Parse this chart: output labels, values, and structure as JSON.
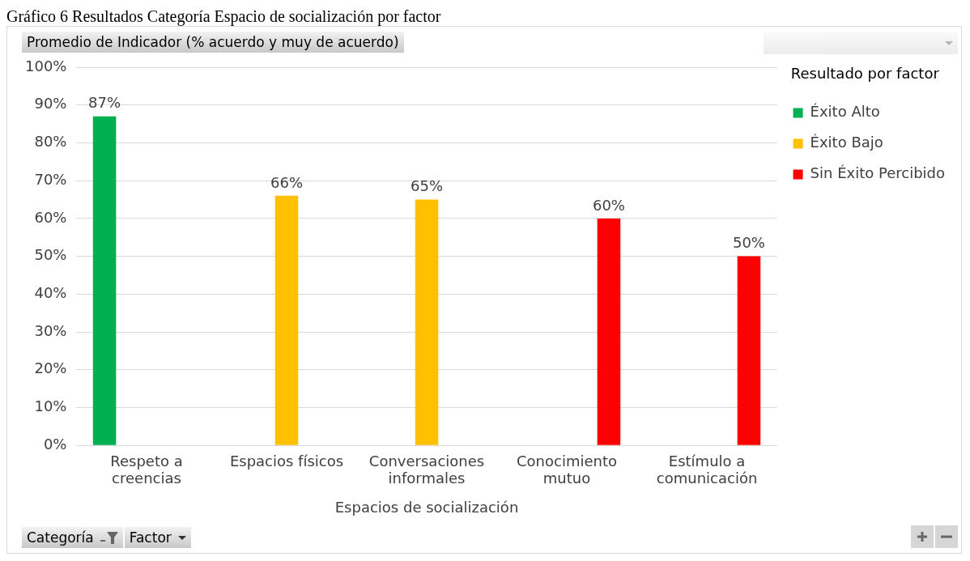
{
  "chart_data": {
    "type": "bar",
    "title": "Gráfico 6 Resultados Categoría Espacio de socialización por factor",
    "ylabel": "Promedio de Indicador (% acuerdo y muy de acuerdo)",
    "xlabel": "Espacios de socialización",
    "legend_title": "Resultado por factor",
    "categories": [
      "Respeto a creencias",
      "Espacios físicos",
      "Conversaciones informales",
      "Conocimiento mutuo",
      "Estímulo a comunicación"
    ],
    "series": [
      {
        "name": "Éxito Alto",
        "color": "#00b050",
        "values": [
          87,
          null,
          null,
          null,
          null
        ],
        "value_labels": [
          "87%",
          null,
          null,
          null,
          null
        ]
      },
      {
        "name": "Éxito Bajo",
        "color": "#ffc000",
        "values": [
          null,
          66,
          65,
          null,
          null
        ],
        "value_labels": [
          null,
          "66%",
          "65%",
          null,
          null
        ]
      },
      {
        "name": "Sin Éxito Percibido",
        "color": "#ff0000",
        "values": [
          null,
          null,
          null,
          60,
          50
        ],
        "value_labels": [
          null,
          null,
          null,
          "60%",
          "50%"
        ]
      }
    ],
    "ylim": [
      0,
      100
    ],
    "yticks": [
      {
        "value": 0,
        "label": "0%"
      },
      {
        "value": 10,
        "label": "10%"
      },
      {
        "value": 20,
        "label": "20%"
      },
      {
        "value": 30,
        "label": "30%"
      },
      {
        "value": 40,
        "label": "40%"
      },
      {
        "value": 50,
        "label": "50%"
      },
      {
        "value": 60,
        "label": "60%"
      },
      {
        "value": 70,
        "label": "70%"
      },
      {
        "value": 80,
        "label": "80%"
      },
      {
        "value": 90,
        "label": "90%"
      },
      {
        "value": 100,
        "label": "100%"
      }
    ],
    "grid": "y",
    "legend": "right",
    "annotations": [
      "Categoría",
      "Factor"
    ]
  }
}
